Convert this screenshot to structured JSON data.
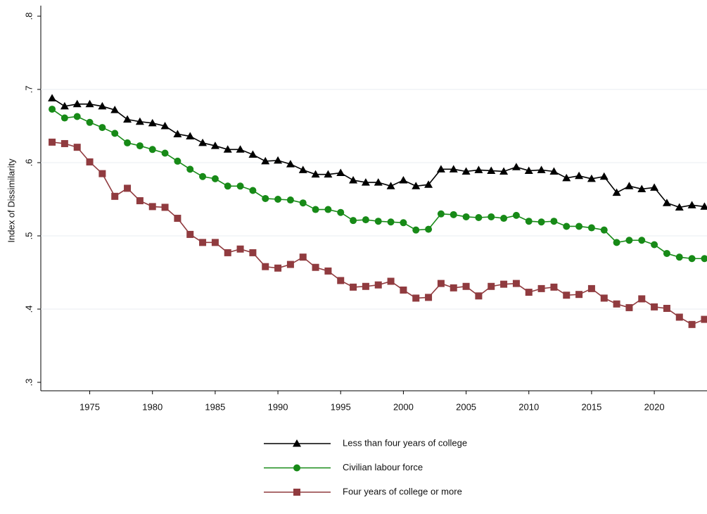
{
  "chart_data": {
    "type": "line",
    "y_label": "Index of Dissimilarity",
    "x": [
      1972,
      1973,
      1974,
      1975,
      1976,
      1977,
      1978,
      1979,
      1980,
      1981,
      1982,
      1983,
      1984,
      1985,
      1986,
      1987,
      1988,
      1989,
      1990,
      1991,
      1992,
      1993,
      1994,
      1995,
      1996,
      1997,
      1998,
      1999,
      2000,
      2001,
      2002,
      2003,
      2004,
      2005,
      2006,
      2007,
      2008,
      2009,
      2010,
      2011,
      2012,
      2013,
      2014,
      2015,
      2016,
      2017,
      2018,
      2019,
      2020,
      2021,
      2022,
      2023,
      2024
    ],
    "series": [
      {
        "name": "Less than four years of college",
        "color": "#000000",
        "marker": "triangle",
        "values": [
          0.688,
          0.677,
          0.68,
          0.68,
          0.677,
          0.672,
          0.659,
          0.656,
          0.654,
          0.65,
          0.639,
          0.636,
          0.627,
          0.623,
          0.618,
          0.618,
          0.611,
          0.602,
          0.603,
          0.598,
          0.59,
          0.584,
          0.584,
          0.586,
          0.576,
          0.573,
          0.573,
          0.568,
          0.576,
          0.568,
          0.57,
          0.591,
          0.591,
          0.588,
          0.59,
          0.589,
          0.588,
          0.594,
          0.589,
          0.59,
          0.588,
          0.579,
          0.582,
          0.578,
          0.581,
          0.559,
          0.568,
          0.564,
          0.566,
          0.545,
          0.539,
          0.542,
          0.54
        ]
      },
      {
        "name": "Civilian labour force",
        "color": "#178a17",
        "marker": "circle",
        "values": [
          0.673,
          0.661,
          0.663,
          0.655,
          0.648,
          0.64,
          0.627,
          0.623,
          0.618,
          0.613,
          0.602,
          0.591,
          0.581,
          0.578,
          0.568,
          0.568,
          0.562,
          0.551,
          0.55,
          0.549,
          0.545,
          0.536,
          0.536,
          0.532,
          0.521,
          0.522,
          0.52,
          0.519,
          0.518,
          0.508,
          0.509,
          0.53,
          0.529,
          0.526,
          0.525,
          0.526,
          0.524,
          0.528,
          0.52,
          0.519,
          0.52,
          0.513,
          0.513,
          0.511,
          0.508,
          0.491,
          0.494,
          0.494,
          0.488,
          0.476,
          0.471,
          0.469,
          0.469
        ]
      },
      {
        "name": "Four years of college or more",
        "color": "#903b3f",
        "marker": "square",
        "values": [
          0.628,
          0.626,
          0.621,
          0.601,
          0.585,
          0.554,
          0.565,
          0.548,
          0.54,
          0.539,
          0.524,
          0.502,
          0.491,
          0.491,
          0.477,
          0.482,
          0.477,
          0.458,
          0.456,
          0.461,
          0.471,
          0.457,
          0.452,
          0.439,
          0.43,
          0.431,
          0.433,
          0.438,
          0.426,
          0.415,
          0.416,
          0.435,
          0.429,
          0.431,
          0.418,
          0.431,
          0.434,
          0.435,
          0.423,
          0.428,
          0.43,
          0.419,
          0.42,
          0.428,
          0.415,
          0.407,
          0.402,
          0.414,
          0.403,
          0.401,
          0.389,
          0.379,
          0.386
        ]
      }
    ],
    "xlim": [
      1971.1,
      2024.2
    ],
    "xticks": [
      1975,
      1980,
      1985,
      1990,
      1995,
      2000,
      2005,
      2010,
      2015,
      2020
    ],
    "ylim": [
      0.3,
      0.8
    ],
    "yticks": [
      {
        "value": 0.3,
        "label": ".3"
      },
      {
        "value": 0.4,
        "label": ".4"
      },
      {
        "value": 0.5,
        "label": ".5"
      },
      {
        "value": 0.6,
        "label": ".6"
      },
      {
        "value": 0.7,
        "label": ".7"
      },
      {
        "value": 0.8,
        "label": ".8"
      }
    ],
    "grid": true,
    "legend": "bottom"
  }
}
